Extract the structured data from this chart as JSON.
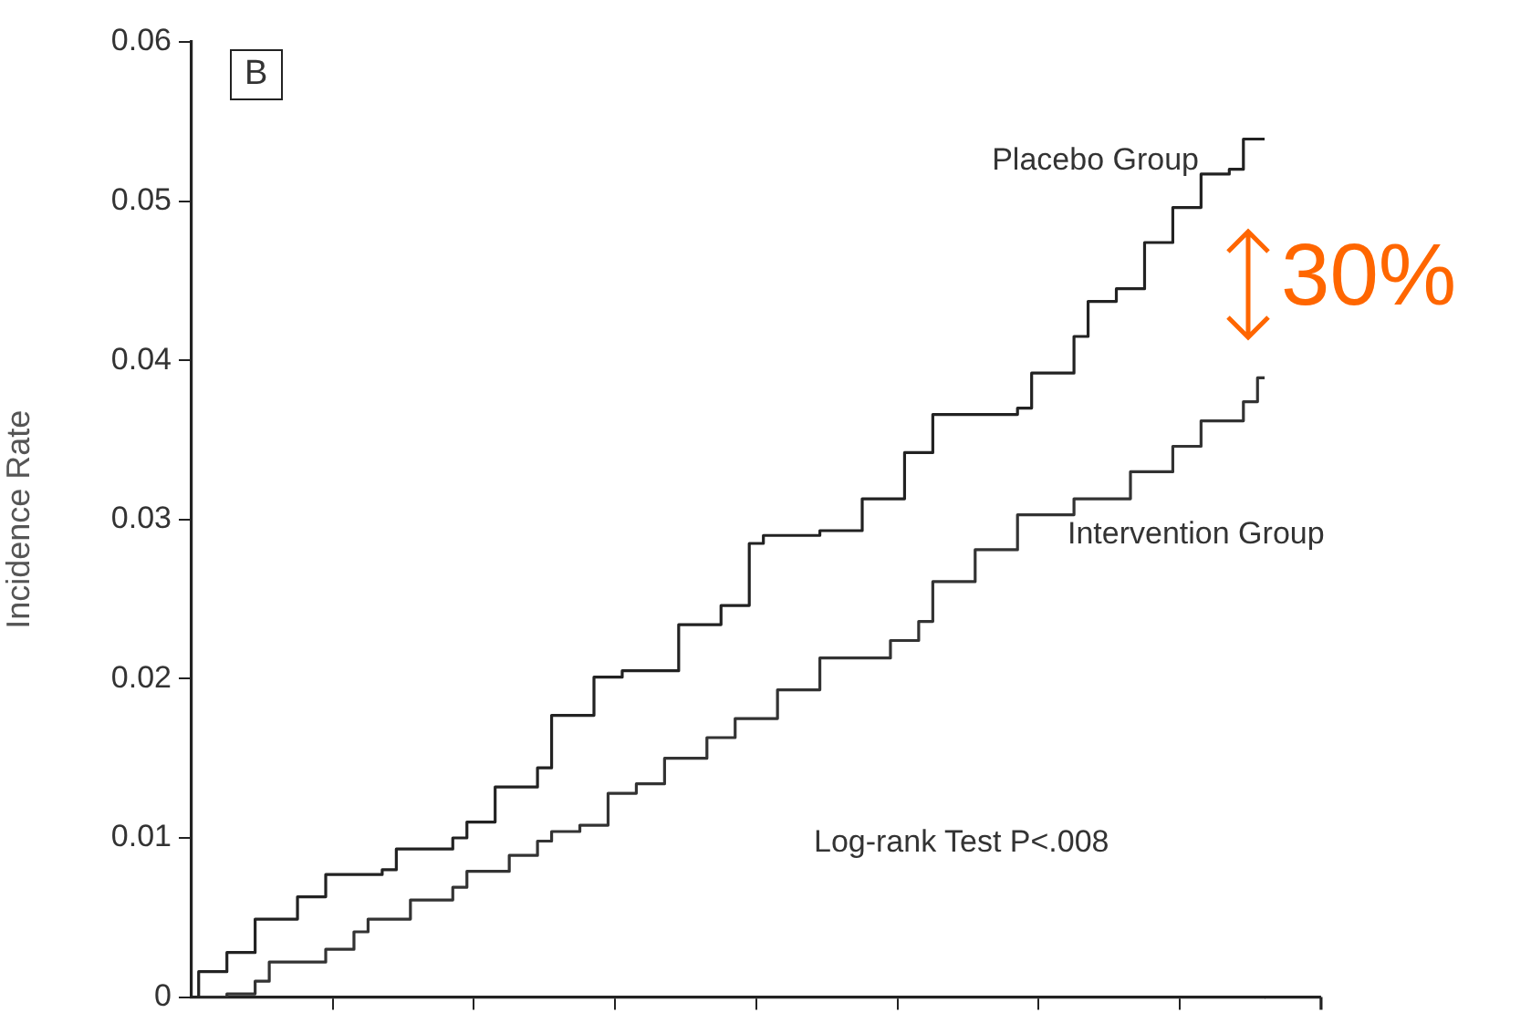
{
  "chart_data": {
    "type": "step",
    "ylabel": "Incidence Rate",
    "categories": [
      null,
      null,
      null,
      null,
      null,
      null,
      null,
      null,
      null,
      null,
      null,
      null,
      null,
      null,
      null,
      null,
      null,
      null,
      null,
      null,
      null,
      null,
      null,
      null,
      null,
      null,
      null,
      null,
      null,
      null,
      null,
      null,
      null,
      null,
      null,
      null,
      null,
      null,
      null,
      null,
      null,
      null,
      null,
      null,
      null,
      null,
      null,
      null,
      null,
      null,
      null,
      null,
      null,
      null,
      null,
      null,
      null,
      null,
      null,
      null,
      null,
      null,
      null,
      null,
      null,
      null,
      null,
      null,
      null,
      null,
      null,
      null,
      null,
      null,
      null,
      null,
      null
    ],
    "ylim": [
      0,
      0.06
    ],
    "yticks": [
      0,
      0.01,
      0.02,
      0.03,
      0.04,
      0.05,
      0.06
    ],
    "tick_labels": "y",
    "grid": false,
    "legend": false,
    "marker": "none",
    "line_style": "solid",
    "annotations": [
      "B",
      "Log-rank Test P<.008",
      "30%"
    ],
    "series": [
      {
        "name": "Placebo Group",
        "color": "#222222",
        "values": [
          0,
          0.0016,
          0.0016,
          0.0028,
          0.0028,
          0.0049,
          0.0049,
          0.0049,
          0.0063,
          0.0063,
          0.0077,
          0.0077,
          0.0077,
          0.0077,
          0.008,
          0.0093,
          0.0093,
          0.0093,
          0.0093,
          0.01,
          0.011,
          0.011,
          0.0132,
          0.0132,
          0.0132,
          0.0144,
          0.0177,
          0.0177,
          0.0177,
          0.0201,
          0.0201,
          0.0205,
          0.0205,
          0.0205,
          0.0205,
          0.0234,
          0.0234,
          0.0234,
          0.0246,
          0.0246,
          0.0285,
          0.029,
          0.029,
          0.029,
          0.029,
          0.0293,
          0.0293,
          0.0293,
          0.0313,
          0.0313,
          0.0313,
          0.0342,
          0.0342,
          0.0366,
          0.0366,
          0.0366,
          0.0366,
          0.0366,
          0.0366,
          0.037,
          0.0392,
          0.0392,
          0.0392,
          0.0415,
          0.0437,
          0.0437,
          0.0445,
          0.0445,
          0.0474,
          0.0474,
          0.0496,
          0.0496,
          0.0517,
          0.0517,
          0.052,
          0.0539,
          0.0539
        ]
      },
      {
        "name": "Intervention Group",
        "color": "#333333",
        "values": [
          0,
          0,
          0,
          0.0002,
          0.0002,
          0.001,
          0.0022,
          0.0022,
          0.0022,
          0.0022,
          0.003,
          0.003,
          0.0041,
          0.0049,
          0.0049,
          0.0049,
          0.0061,
          0.0061,
          0.0061,
          0.0069,
          0.0079,
          0.0079,
          0.0079,
          0.0089,
          0.0089,
          0.0098,
          0.0104,
          0.0104,
          0.0108,
          0.0108,
          0.0128,
          0.0128,
          0.0134,
          0.0134,
          0.015,
          0.015,
          0.015,
          0.0163,
          0.0163,
          0.0175,
          0.0175,
          0.0175,
          0.0193,
          0.0193,
          0.0193,
          0.0213,
          0.0213,
          0.0213,
          0.0213,
          0.0213,
          0.0224,
          0.0224,
          0.0236,
          0.0261,
          0.0261,
          0.0261,
          0.0281,
          0.0281,
          0.0281,
          0.0303,
          0.0303,
          0.0303,
          0.0303,
          0.0313,
          0.0313,
          0.0313,
          0.0313,
          0.033,
          0.033,
          0.033,
          0.0346,
          0.0346,
          0.0362,
          0.0362,
          0.0362,
          0.0374,
          0.0389
        ]
      }
    ]
  }
}
